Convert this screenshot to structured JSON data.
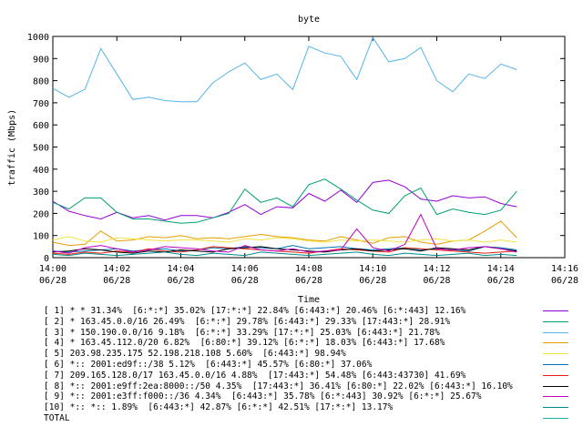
{
  "chart_data": {
    "type": "line",
    "title": "byte",
    "xlabel": "Time",
    "ylabel": "traffic (Mbps)",
    "ylim": [
      0,
      1000
    ],
    "xlim": [
      0,
      16
    ],
    "grid": false,
    "legend_position": "bottom",
    "y_ticks": [
      "0",
      "100",
      "200",
      "300",
      "400",
      "500",
      "600",
      "700",
      "800",
      "900",
      "1000"
    ],
    "x_ticks": [
      {
        "time": "14:00",
        "date": "06/28"
      },
      {
        "time": "14:02",
        "date": "06/28"
      },
      {
        "time": "14:04",
        "date": "06/28"
      },
      {
        "time": "14:06",
        "date": "06/28"
      },
      {
        "time": "14:08",
        "date": "06/28"
      },
      {
        "time": "14:10",
        "date": "06/28"
      },
      {
        "time": "14:12",
        "date": "06/28"
      },
      {
        "time": "14:14",
        "date": "06/28"
      },
      {
        "time": "14:16",
        "date": "06/28"
      }
    ],
    "x": [
      0,
      0.5,
      1,
      1.5,
      2,
      2.5,
      3,
      3.5,
      4,
      4.5,
      5,
      5.5,
      6,
      6.5,
      7,
      7.5,
      8,
      8.5,
      9,
      9.5,
      10,
      10.5,
      11,
      11.5,
      12,
      12.5,
      13,
      13.5,
      14,
      14.5
    ],
    "series": [
      {
        "name": "[ 1] * * 31.34%  [6:*:*] 35.02% [17:*:*] 22.84% [6:443:*] 20.46% [6:*:443] 12.16%",
        "color": "#9400d3",
        "values": [
          255,
          210,
          190,
          175,
          205,
          180,
          190,
          170,
          190,
          190,
          180,
          205,
          240,
          195,
          230,
          225,
          290,
          255,
          305,
          250,
          340,
          350,
          320,
          265,
          255,
          280,
          270,
          275,
          245,
          230
        ]
      },
      {
        "name": "[ 2] * 163.45.0.0/16 26.49%  [6:*:*] 29.78% [6:443:*] 29.33% [17:443:*] 28.91%",
        "color": "#009e73",
        "values": [
          250,
          220,
          270,
          270,
          205,
          175,
          175,
          165,
          155,
          160,
          180,
          200,
          310,
          250,
          270,
          230,
          330,
          355,
          310,
          260,
          215,
          200,
          280,
          315,
          195,
          220,
          205,
          195,
          215,
          300
        ]
      },
      {
        "name": "[ 3] * 150.190.0.0/16 9.18%  [6:*:*] 33.29% [17:*:*] 25.03% [6:443:*] 21.78%",
        "color": "#56b4e9",
        "values": [
          765,
          725,
          760,
          945,
          830,
          715,
          725,
          710,
          705,
          705,
          790,
          840,
          880,
          805,
          830,
          760,
          955,
          925,
          910,
          805,
          995,
          885,
          900,
          950,
          800,
          750,
          830,
          810,
          875,
          850
        ]
      },
      {
        "name": "[ 4] * 163.45.112.0/20 6.82%  [6:80:*] 39.12% [6:*:*] 18.03% [6:443:*] 17.68%",
        "color": "#e69f00",
        "values": [
          70,
          55,
          60,
          120,
          75,
          80,
          95,
          90,
          100,
          85,
          90,
          85,
          95,
          105,
          95,
          90,
          80,
          75,
          95,
          80,
          65,
          90,
          95,
          70,
          60,
          75,
          80,
          120,
          165,
          90
        ]
      },
      {
        "name": "[ 5] 203.98.235.175 52.198.218.108 5.60%  [6:443:*] 98.94%",
        "color": "#f0e442",
        "values": [
          80,
          95,
          75,
          70,
          90,
          85,
          80,
          75,
          80,
          80,
          75,
          70,
          85,
          80,
          90,
          85,
          75,
          70,
          80,
          75,
          80,
          75,
          70,
          80,
          85,
          75,
          80,
          70,
          80,
          70
        ]
      },
      {
        "name": "[ 6] *:: 2001:ed9f::/38 5.12%  [6:443:*] 45.57% [6:80:*] 37.06%",
        "color": "#0072b2",
        "values": [
          30,
          25,
          30,
          35,
          40,
          30,
          35,
          40,
          30,
          35,
          45,
          40,
          50,
          45,
          40,
          55,
          40,
          45,
          50,
          40,
          35,
          40,
          45,
          35,
          40,
          35,
          30,
          50,
          45,
          35
        ]
      },
      {
        "name": "[ 7] 209.165.128.0/17 163.45.0.0/16 4.88%  [17:443:*] 54.48% [6:443:43730] 41.69%",
        "color": "#e51e10",
        "values": [
          20,
          15,
          25,
          20,
          30,
          25,
          40,
          30,
          25,
          35,
          50,
          45,
          40,
          35,
          30,
          25,
          20,
          30,
          40,
          35,
          30,
          25,
          45,
          40,
          35,
          30,
          25,
          20,
          25,
          30
        ]
      },
      {
        "name": "[ 8] *:: 2001:e9ff:2ea:8000::/50 4.35%  [17:443:*] 36.41% [6:80:*] 22.02% [6:443:*] 16.10%",
        "color": "#000000",
        "values": [
          25,
          30,
          40,
          35,
          25,
          20,
          30,
          25,
          35,
          30,
          25,
          40,
          45,
          50,
          40,
          35,
          30,
          25,
          35,
          40,
          30,
          35,
          40,
          30,
          45,
          40,
          35,
          50,
          40,
          30
        ]
      },
      {
        "name": "[ 9] *:: 2001:e3ff:f000::/36 4.34%  [6:443:*] 35.78% [6:*:443] 30.92% [6:*:*] 25.67%",
        "color": "#c000c0",
        "values": [
          30,
          20,
          45,
          55,
          40,
          25,
          35,
          50,
          45,
          40,
          30,
          25,
          55,
          35,
          30,
          40,
          25,
          30,
          35,
          130,
          45,
          30,
          60,
          195,
          40,
          35,
          45,
          50,
          40,
          25
        ]
      },
      {
        "name": "[10] *:: *:: 1.89%  [6:443:*] 42.87% [6:*:*] 42.51% [17:*:*] 13.17%",
        "color": "#008b8b",
        "values": [
          15,
          10,
          20,
          15,
          10,
          15,
          20,
          25,
          15,
          10,
          20,
          15,
          10,
          25,
          20,
          15,
          10,
          15,
          20,
          25,
          15,
          10,
          20,
          15,
          10,
          15,
          20,
          10,
          15,
          10
        ]
      }
    ],
    "total_label": "TOTAL",
    "total_color": "#20b2aa"
  },
  "legend": [
    {
      "text": "[ 1] * * 31.34%  [6:*:*] 35.02% [17:*:*] 22.84% [6:443:*] 20.46% [6:*:443] 12.16%",
      "color": "#9400d3"
    },
    {
      "text": "[ 2] * 163.45.0.0/16 26.49%  [6:*:*] 29.78% [6:443:*] 29.33% [17:443:*] 28.91%",
      "color": "#009e73"
    },
    {
      "text": "[ 3] * 150.190.0.0/16 9.18%  [6:*:*] 33.29% [17:*:*] 25.03% [6:443:*] 21.78%",
      "color": "#56b4e9"
    },
    {
      "text": "[ 4] * 163.45.112.0/20 6.82%  [6:80:*] 39.12% [6:*:*] 18.03% [6:443:*] 17.68%",
      "color": "#e69f00"
    },
    {
      "text": "[ 5] 203.98.235.175 52.198.218.108 5.60%  [6:443:*] 98.94%",
      "color": "#f0e442"
    },
    {
      "text": "[ 6] *:: 2001:ed9f::/38 5.12%  [6:443:*] 45.57% [6:80:*] 37.06%",
      "color": "#0072b2"
    },
    {
      "text": "[ 7] 209.165.128.0/17 163.45.0.0/16 4.88%  [17:443:*] 54.48% [6:443:43730] 41.69%",
      "color": "#e51e10"
    },
    {
      "text": "[ 8] *:: 2001:e9ff:2ea:8000::/50 4.35%  [17:443:*] 36.41% [6:80:*] 22.02% [6:443:*] 16.10%",
      "color": "#000000"
    },
    {
      "text": "[ 9] *:: 2001:e3ff:f000::/36 4.34%  [6:443:*] 35.78% [6:*:443] 30.92% [6:*:*] 25.67%",
      "color": "#c000c0"
    },
    {
      "text": "[10] *:: *:: 1.89%  [6:443:*] 42.87% [6:*:*] 42.51% [17:*:*] 13.17%",
      "color": "#008b8b"
    },
    {
      "text": "TOTAL",
      "color": "#20b2aa"
    }
  ]
}
